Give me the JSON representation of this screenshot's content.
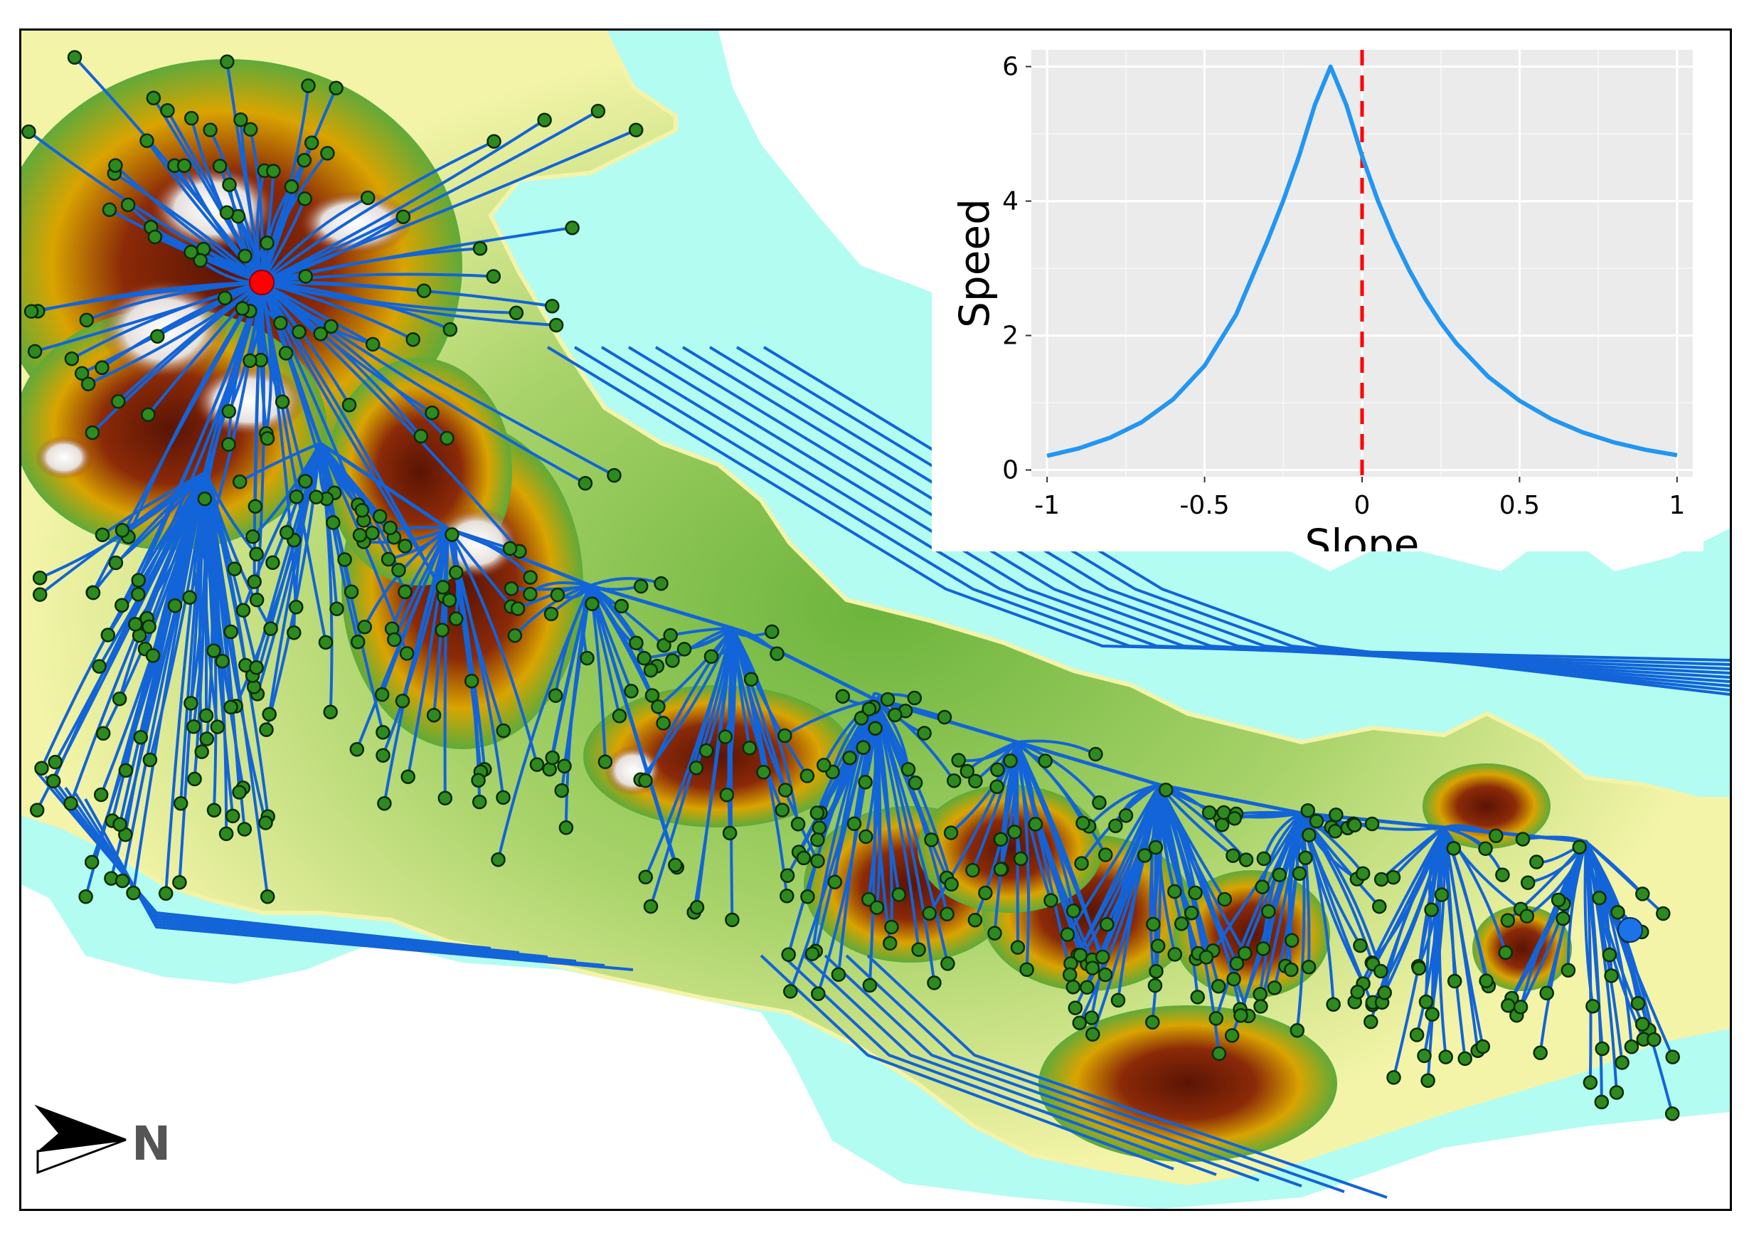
{
  "colors": {
    "sea_buffer": "#b3fcf2",
    "route": "#1264d8",
    "site_fill": "#2d8a1e",
    "site_stroke": "#0a2a06",
    "origin_point": "#ff0000",
    "destination_point": "#1a73e8",
    "elev_low": "#f4f4a8",
    "elev_mid": "#5faa3a",
    "elev_high": "#d9a400",
    "elev_peak": "#7a1a06",
    "elev_summit": "#f2f2f2",
    "inset_panel": "#ebebeb",
    "inset_curve": "#2196f3",
    "inset_zero_line": "#ff0000"
  },
  "map": {
    "north_label": "N",
    "icons": [
      "north-arrow-icon"
    ]
  },
  "chart_data": {
    "type": "line",
    "xlabel": "Slope",
    "ylabel": "Speed",
    "xlim": [
      -1.05,
      1.05
    ],
    "ylim": [
      -0.1,
      6.25
    ],
    "x_ticks": [
      -1,
      -0.5,
      0,
      0.5,
      1
    ],
    "x_tick_labels": [
      "-1",
      "-0.5",
      "0",
      "0.5",
      "1"
    ],
    "y_ticks": [
      0,
      2,
      4,
      6
    ],
    "y_tick_labels": [
      "0",
      "2",
      "4",
      "6"
    ],
    "grid": true,
    "reference_line": {
      "x": 0,
      "style": "dashed"
    },
    "series": [
      {
        "x": [
          -1.0,
          -0.9,
          -0.8,
          -0.7,
          -0.6,
          -0.5,
          -0.4,
          -0.3,
          -0.25,
          -0.2,
          -0.15,
          -0.1,
          -0.05,
          0.0,
          0.05,
          0.1,
          0.15,
          0.2,
          0.25,
          0.3,
          0.4,
          0.5,
          0.6,
          0.7,
          0.8,
          0.9,
          1.0
        ],
        "y": [
          0.21,
          0.32,
          0.48,
          0.71,
          1.05,
          1.55,
          2.31,
          3.41,
          4.01,
          4.67,
          5.43,
          6.0,
          5.43,
          4.67,
          4.01,
          3.45,
          2.97,
          2.55,
          2.19,
          1.88,
          1.39,
          1.03,
          0.76,
          0.56,
          0.41,
          0.3,
          0.22
        ]
      }
    ]
  }
}
